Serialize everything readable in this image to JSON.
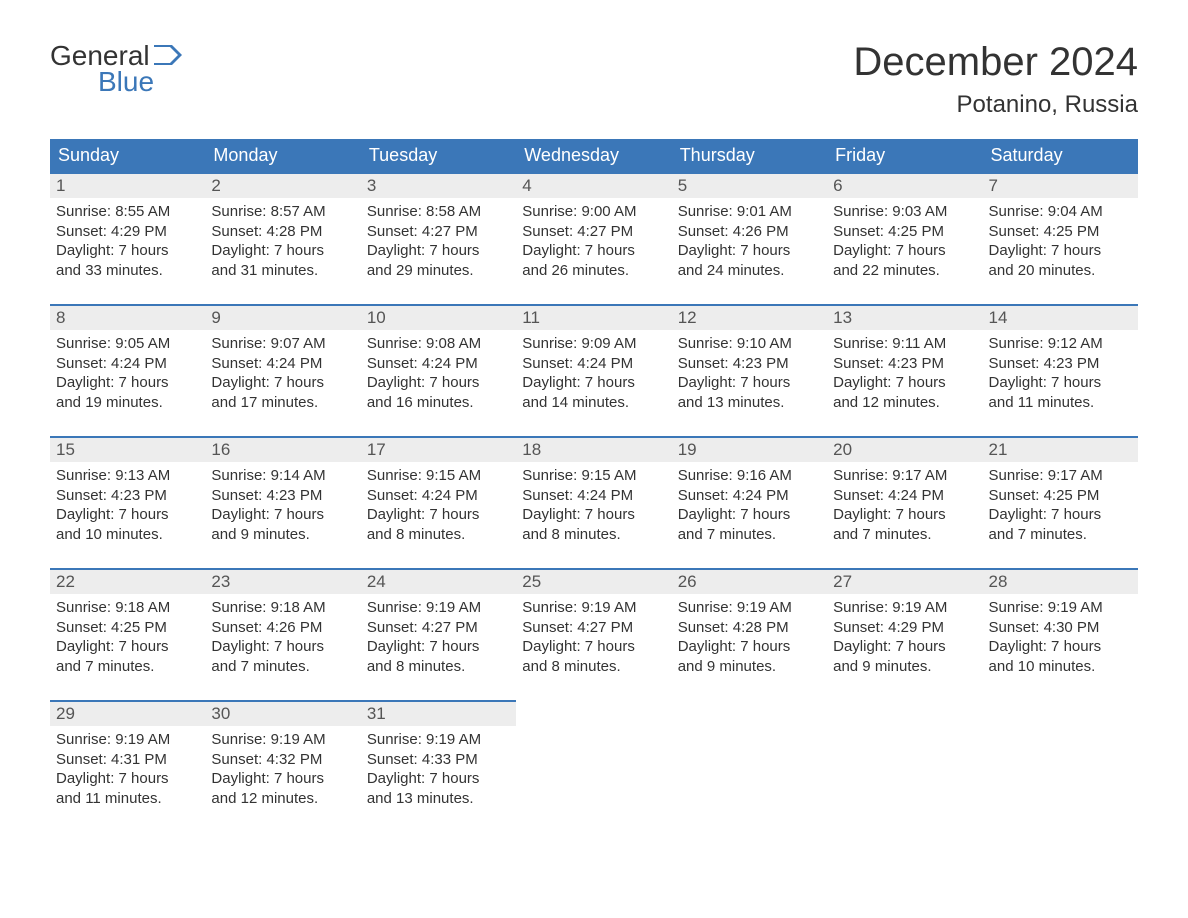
{
  "logo": {
    "word1": "General",
    "word2": "Blue"
  },
  "title": "December 2024",
  "location": "Potanino, Russia",
  "colors": {
    "header_bg": "#3b77b8",
    "header_text": "#ffffff",
    "daynum_bg": "#ededed",
    "daynum_border": "#3b77b8",
    "body_text": "#333333",
    "logo_blue": "#3b77b8",
    "page_bg": "#ffffff"
  },
  "typography": {
    "title_fontsize": 40,
    "location_fontsize": 24,
    "dow_fontsize": 18,
    "daynum_fontsize": 17,
    "body_fontsize": 15,
    "logo_fontsize": 28
  },
  "days_of_week": [
    "Sunday",
    "Monday",
    "Tuesday",
    "Wednesday",
    "Thursday",
    "Friday",
    "Saturday"
  ],
  "weeks": [
    [
      {
        "day": "1",
        "sunrise": "Sunrise: 8:55 AM",
        "sunset": "Sunset: 4:29 PM",
        "dl1": "Daylight: 7 hours",
        "dl2": "and 33 minutes."
      },
      {
        "day": "2",
        "sunrise": "Sunrise: 8:57 AM",
        "sunset": "Sunset: 4:28 PM",
        "dl1": "Daylight: 7 hours",
        "dl2": "and 31 minutes."
      },
      {
        "day": "3",
        "sunrise": "Sunrise: 8:58 AM",
        "sunset": "Sunset: 4:27 PM",
        "dl1": "Daylight: 7 hours",
        "dl2": "and 29 minutes."
      },
      {
        "day": "4",
        "sunrise": "Sunrise: 9:00 AM",
        "sunset": "Sunset: 4:27 PM",
        "dl1": "Daylight: 7 hours",
        "dl2": "and 26 minutes."
      },
      {
        "day": "5",
        "sunrise": "Sunrise: 9:01 AM",
        "sunset": "Sunset: 4:26 PM",
        "dl1": "Daylight: 7 hours",
        "dl2": "and 24 minutes."
      },
      {
        "day": "6",
        "sunrise": "Sunrise: 9:03 AM",
        "sunset": "Sunset: 4:25 PM",
        "dl1": "Daylight: 7 hours",
        "dl2": "and 22 minutes."
      },
      {
        "day": "7",
        "sunrise": "Sunrise: 9:04 AM",
        "sunset": "Sunset: 4:25 PM",
        "dl1": "Daylight: 7 hours",
        "dl2": "and 20 minutes."
      }
    ],
    [
      {
        "day": "8",
        "sunrise": "Sunrise: 9:05 AM",
        "sunset": "Sunset: 4:24 PM",
        "dl1": "Daylight: 7 hours",
        "dl2": "and 19 minutes."
      },
      {
        "day": "9",
        "sunrise": "Sunrise: 9:07 AM",
        "sunset": "Sunset: 4:24 PM",
        "dl1": "Daylight: 7 hours",
        "dl2": "and 17 minutes."
      },
      {
        "day": "10",
        "sunrise": "Sunrise: 9:08 AM",
        "sunset": "Sunset: 4:24 PM",
        "dl1": "Daylight: 7 hours",
        "dl2": "and 16 minutes."
      },
      {
        "day": "11",
        "sunrise": "Sunrise: 9:09 AM",
        "sunset": "Sunset: 4:24 PM",
        "dl1": "Daylight: 7 hours",
        "dl2": "and 14 minutes."
      },
      {
        "day": "12",
        "sunrise": "Sunrise: 9:10 AM",
        "sunset": "Sunset: 4:23 PM",
        "dl1": "Daylight: 7 hours",
        "dl2": "and 13 minutes."
      },
      {
        "day": "13",
        "sunrise": "Sunrise: 9:11 AM",
        "sunset": "Sunset: 4:23 PM",
        "dl1": "Daylight: 7 hours",
        "dl2": "and 12 minutes."
      },
      {
        "day": "14",
        "sunrise": "Sunrise: 9:12 AM",
        "sunset": "Sunset: 4:23 PM",
        "dl1": "Daylight: 7 hours",
        "dl2": "and 11 minutes."
      }
    ],
    [
      {
        "day": "15",
        "sunrise": "Sunrise: 9:13 AM",
        "sunset": "Sunset: 4:23 PM",
        "dl1": "Daylight: 7 hours",
        "dl2": "and 10 minutes."
      },
      {
        "day": "16",
        "sunrise": "Sunrise: 9:14 AM",
        "sunset": "Sunset: 4:23 PM",
        "dl1": "Daylight: 7 hours",
        "dl2": "and 9 minutes."
      },
      {
        "day": "17",
        "sunrise": "Sunrise: 9:15 AM",
        "sunset": "Sunset: 4:24 PM",
        "dl1": "Daylight: 7 hours",
        "dl2": "and 8 minutes."
      },
      {
        "day": "18",
        "sunrise": "Sunrise: 9:15 AM",
        "sunset": "Sunset: 4:24 PM",
        "dl1": "Daylight: 7 hours",
        "dl2": "and 8 minutes."
      },
      {
        "day": "19",
        "sunrise": "Sunrise: 9:16 AM",
        "sunset": "Sunset: 4:24 PM",
        "dl1": "Daylight: 7 hours",
        "dl2": "and 7 minutes."
      },
      {
        "day": "20",
        "sunrise": "Sunrise: 9:17 AM",
        "sunset": "Sunset: 4:24 PM",
        "dl1": "Daylight: 7 hours",
        "dl2": "and 7 minutes."
      },
      {
        "day": "21",
        "sunrise": "Sunrise: 9:17 AM",
        "sunset": "Sunset: 4:25 PM",
        "dl1": "Daylight: 7 hours",
        "dl2": "and 7 minutes."
      }
    ],
    [
      {
        "day": "22",
        "sunrise": "Sunrise: 9:18 AM",
        "sunset": "Sunset: 4:25 PM",
        "dl1": "Daylight: 7 hours",
        "dl2": "and 7 minutes."
      },
      {
        "day": "23",
        "sunrise": "Sunrise: 9:18 AM",
        "sunset": "Sunset: 4:26 PM",
        "dl1": "Daylight: 7 hours",
        "dl2": "and 7 minutes."
      },
      {
        "day": "24",
        "sunrise": "Sunrise: 9:19 AM",
        "sunset": "Sunset: 4:27 PM",
        "dl1": "Daylight: 7 hours",
        "dl2": "and 8 minutes."
      },
      {
        "day": "25",
        "sunrise": "Sunrise: 9:19 AM",
        "sunset": "Sunset: 4:27 PM",
        "dl1": "Daylight: 7 hours",
        "dl2": "and 8 minutes."
      },
      {
        "day": "26",
        "sunrise": "Sunrise: 9:19 AM",
        "sunset": "Sunset: 4:28 PM",
        "dl1": "Daylight: 7 hours",
        "dl2": "and 9 minutes."
      },
      {
        "day": "27",
        "sunrise": "Sunrise: 9:19 AM",
        "sunset": "Sunset: 4:29 PM",
        "dl1": "Daylight: 7 hours",
        "dl2": "and 9 minutes."
      },
      {
        "day": "28",
        "sunrise": "Sunrise: 9:19 AM",
        "sunset": "Sunset: 4:30 PM",
        "dl1": "Daylight: 7 hours",
        "dl2": "and 10 minutes."
      }
    ],
    [
      {
        "day": "29",
        "sunrise": "Sunrise: 9:19 AM",
        "sunset": "Sunset: 4:31 PM",
        "dl1": "Daylight: 7 hours",
        "dl2": "and 11 minutes."
      },
      {
        "day": "30",
        "sunrise": "Sunrise: 9:19 AM",
        "sunset": "Sunset: 4:32 PM",
        "dl1": "Daylight: 7 hours",
        "dl2": "and 12 minutes."
      },
      {
        "day": "31",
        "sunrise": "Sunrise: 9:19 AM",
        "sunset": "Sunset: 4:33 PM",
        "dl1": "Daylight: 7 hours",
        "dl2": "and 13 minutes."
      },
      null,
      null,
      null,
      null
    ]
  ]
}
